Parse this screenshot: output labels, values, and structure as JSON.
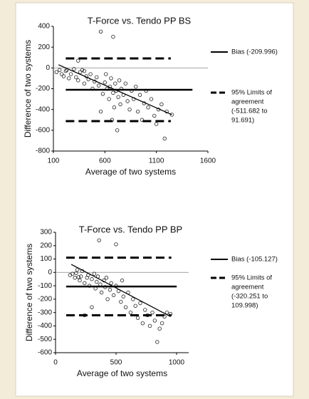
{
  "chart_data": [
    {
      "type": "scatter",
      "title": "T-Force vs. Tendo PP BS",
      "x_label": "Average of two systems",
      "y_label": "Difference of two systems",
      "xlim": [
        100,
        1600
      ],
      "xticks": [
        100,
        600,
        1100,
        1600
      ],
      "ylim": [
        -800,
        400
      ],
      "yticks": [
        -800,
        -600,
        -400,
        -200,
        0,
        200,
        400
      ],
      "x": [
        130,
        160,
        180,
        200,
        220,
        250,
        270,
        300,
        320,
        340,
        360,
        380,
        400,
        420,
        440,
        460,
        480,
        500,
        520,
        540,
        560,
        580,
        600,
        610,
        620,
        640,
        650,
        660,
        670,
        680,
        690,
        700,
        710,
        720,
        730,
        740,
        750,
        760,
        780,
        800,
        820,
        840,
        860,
        880,
        900,
        920,
        940,
        960,
        980,
        1000,
        1020,
        1050,
        1080,
        1100,
        1120,
        1150,
        1180,
        1200,
        1250,
        560,
        680,
        400,
        340,
        230
      ],
      "values": [
        -40,
        -20,
        -60,
        -80,
        -30,
        -100,
        -60,
        -10,
        -90,
        -120,
        -40,
        -20,
        -150,
        -80,
        -110,
        -60,
        -200,
        -130,
        -90,
        -170,
        -420,
        -250,
        -140,
        -60,
        -200,
        -300,
        -180,
        -100,
        -500,
        -240,
        -380,
        -150,
        -220,
        -600,
        -280,
        -120,
        -350,
        -200,
        -260,
        -150,
        -320,
        -400,
        -220,
        -300,
        -180,
        -420,
        -260,
        -500,
        -340,
        -220,
        -380,
        -300,
        -460,
        -540,
        -400,
        -350,
        -680,
        -420,
        -450,
        350,
        300,
        -30,
        70,
        -20
      ],
      "bias": -209.996,
      "loa": [
        -511.682,
        91.691
      ],
      "regression": [
        [
          150,
          30
        ],
        [
          1250,
          -450
        ]
      ],
      "legend": [
        {
          "style": "solid",
          "lines": [
            "Bias (-209.996)"
          ]
        },
        {
          "style": "dashed",
          "lines": [
            "95% Limits of",
            "agreement",
            "(-511.682 to",
            "91.691)"
          ]
        }
      ]
    },
    {
      "type": "scatter",
      "title": "T-Force vs. Tendo PP BP",
      "x_label": "Average of two systems",
      "y_label": "Difference of two systems",
      "xlim": [
        0,
        1100
      ],
      "xticks": [
        0,
        500,
        1000
      ],
      "ylim": [
        -600,
        300
      ],
      "yticks": [
        -600,
        -500,
        -400,
        -300,
        -200,
        -100,
        0,
        100,
        200,
        300
      ],
      "x": [
        120,
        140,
        160,
        180,
        200,
        210,
        220,
        240,
        260,
        270,
        280,
        300,
        320,
        330,
        340,
        350,
        360,
        370,
        380,
        400,
        410,
        420,
        430,
        450,
        460,
        480,
        500,
        500,
        520,
        540,
        550,
        560,
        580,
        600,
        620,
        640,
        660,
        680,
        700,
        720,
        740,
        760,
        780,
        800,
        820,
        840,
        860,
        880,
        900,
        920,
        950,
        240,
        300,
        170,
        190
      ],
      "values": [
        -20,
        -10,
        -40,
        20,
        -60,
        -30,
        10,
        -80,
        -40,
        -20,
        -100,
        -50,
        -10,
        -120,
        -70,
        -30,
        240,
        -90,
        -150,
        -60,
        -110,
        -40,
        -200,
        -130,
        -80,
        -170,
        210,
        -100,
        -140,
        -220,
        -60,
        -180,
        -260,
        -150,
        -300,
        -200,
        -250,
        -340,
        -230,
        -380,
        -280,
        -320,
        -400,
        -300,
        -360,
        -520,
        -420,
        -380,
        -330,
        -300,
        -310,
        -320,
        -260,
        -5,
        -35
      ],
      "bias": -105.127,
      "loa": [
        -320.251,
        109.998
      ],
      "regression": [
        [
          130,
          60
        ],
        [
          950,
          -330
        ]
      ],
      "legend": [
        {
          "style": "solid",
          "lines": [
            "Bias (-105.127)"
          ]
        },
        {
          "style": "dashed",
          "lines": [
            "95% Limits of",
            "agreement",
            "(-320.251 to",
            "109.998)"
          ]
        }
      ]
    }
  ]
}
